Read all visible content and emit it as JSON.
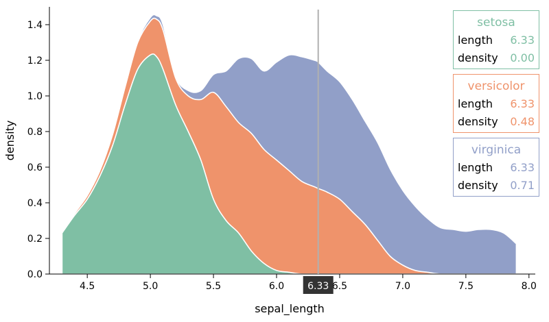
{
  "chart_data": {
    "type": "area",
    "stacked": true,
    "xlabel": "sepal_length",
    "ylabel": "density",
    "xlim": [
      4.2,
      8.05
    ],
    "ylim": [
      0,
      1.5
    ],
    "x_ticks": [
      "4.5",
      "5.0",
      "5.5",
      "6.0",
      "6.5",
      "7.0",
      "7.5",
      "8.0"
    ],
    "y_ticks": [
      "0.0",
      "0.2",
      "0.4",
      "0.6",
      "0.8",
      "1.0",
      "1.2",
      "1.4"
    ],
    "cursor": {
      "x": 6.33,
      "label": "6.33"
    },
    "x": [
      4.3,
      4.4,
      4.5,
      4.6,
      4.7,
      4.8,
      4.9,
      5.0,
      5.05,
      5.1,
      5.2,
      5.3,
      5.4,
      5.5,
      5.6,
      5.7,
      5.8,
      5.9,
      6.0,
      6.1,
      6.2,
      6.3,
      6.33,
      6.4,
      6.5,
      6.6,
      6.7,
      6.8,
      6.9,
      7.0,
      7.1,
      7.2,
      7.3,
      7.4,
      7.5,
      7.6,
      7.7,
      7.8,
      7.9
    ],
    "series": [
      {
        "name": "setosa",
        "color": "#7fbfa4",
        "values": [
          0.23,
          0.33,
          0.42,
          0.55,
          0.72,
          0.95,
          1.15,
          1.23,
          1.22,
          1.15,
          0.95,
          0.8,
          0.64,
          0.42,
          0.3,
          0.23,
          0.13,
          0.06,
          0.02,
          0.01,
          0.0,
          0.0,
          0.0,
          0.0,
          0.0,
          0.0,
          0.0,
          0.0,
          0.0,
          0.0,
          0.0,
          0.0,
          0.0,
          0.0,
          0.0,
          0.0,
          0.0,
          0.0,
          0.0
        ]
      },
      {
        "name": "versicolor",
        "color": "#ef936b",
        "values": [
          0.0,
          0.01,
          0.02,
          0.03,
          0.06,
          0.1,
          0.15,
          0.19,
          0.21,
          0.22,
          0.15,
          0.2,
          0.34,
          0.6,
          0.64,
          0.62,
          0.66,
          0.64,
          0.62,
          0.57,
          0.52,
          0.49,
          0.48,
          0.46,
          0.42,
          0.35,
          0.28,
          0.19,
          0.1,
          0.05,
          0.02,
          0.01,
          0.0,
          0.0,
          0.0,
          0.0,
          0.0,
          0.0,
          0.0
        ]
      },
      {
        "name": "virginica",
        "color": "#919fc8",
        "values": [
          0.0,
          0.0,
          0.0,
          0.0,
          0.0,
          0.0,
          0.01,
          0.02,
          0.02,
          0.03,
          0.01,
          0.03,
          0.05,
          0.1,
          0.2,
          0.36,
          0.42,
          0.44,
          0.55,
          0.65,
          0.7,
          0.71,
          0.71,
          0.68,
          0.66,
          0.63,
          0.58,
          0.55,
          0.49,
          0.42,
          0.36,
          0.3,
          0.26,
          0.25,
          0.24,
          0.25,
          0.25,
          0.23,
          0.17
        ]
      }
    ]
  },
  "legend": [
    {
      "name": "setosa",
      "length_label": "length",
      "length": "6.33",
      "density_label": "density",
      "density": "0.00",
      "color": "#7fbfa4"
    },
    {
      "name": "versicolor",
      "length_label": "length",
      "length": "6.33",
      "density_label": "density",
      "density": "0.48",
      "color": "#ef936b"
    },
    {
      "name": "virginica",
      "length_label": "length",
      "length": "6.33",
      "density_label": "density",
      "density": "0.71",
      "color": "#919fc8"
    }
  ]
}
